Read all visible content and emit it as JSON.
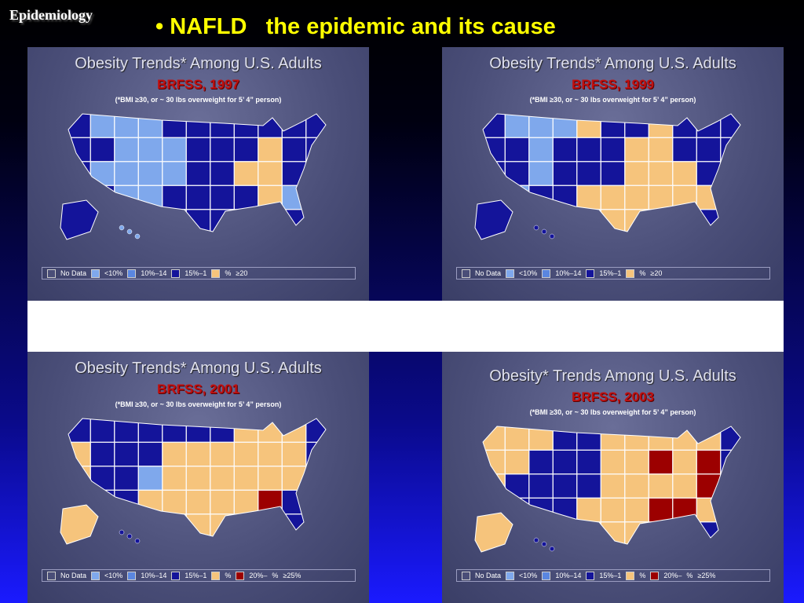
{
  "header": {
    "section": "Epidemiology",
    "title": "• NAFLD   the epidemic and its cause"
  },
  "panels": [
    {
      "title": "Obesity Trends* Among U.S. Adults",
      "subtitle": "BRFSS, 1997",
      "note": "(*BMI ≥30, or ~ 30 lbs overweight for 5’ 4” person)",
      "legend": [
        "No Data",
        "<10%",
        "10%–14",
        "15%–1",
        "%",
        "≥20"
      ]
    },
    {
      "title": "Obesity Trends* Among U.S. Adults",
      "subtitle": "BRFSS, 1999",
      "note": "(*BMI ≥30, or ~ 30 lbs overweight for 5’ 4” person)",
      "legend": [
        "No Data",
        "<10%",
        "10%–14",
        "15%–1",
        "%",
        "≥20"
      ]
    },
    {
      "title": "Obesity Trends* Among U.S. Adults",
      "subtitle": "BRFSS, 2001",
      "note": "(*BMI ≥30, or ~ 30 lbs overweight for 5’ 4” person)",
      "legend": [
        "No Data",
        "<10%",
        "10%–14",
        "15%–1",
        "%",
        "20%–",
        "%",
        "≥25%"
      ]
    },
    {
      "title": "Obesity* Trends Among U.S. Adults",
      "subtitle": "BRFSS, 2003",
      "note": "(*BMI ≥30, or ~ 30 lbs overweight for 5’ 4” person)",
      "legend": [
        "No Data",
        "<10%",
        "10%–14",
        "15%–1",
        "%",
        "20%–",
        "%",
        "≥25%"
      ]
    }
  ]
}
